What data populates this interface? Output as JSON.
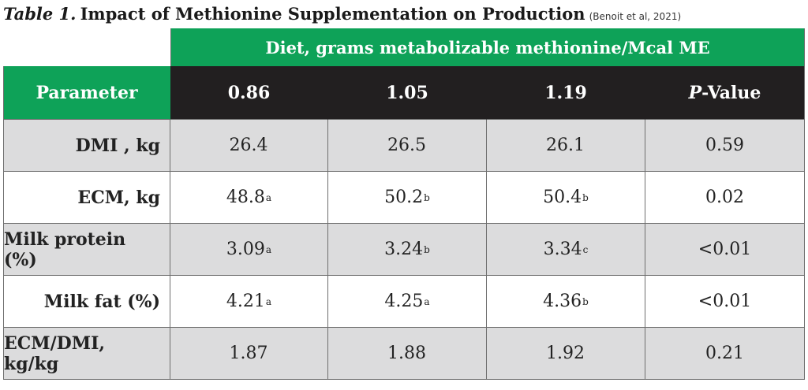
{
  "title": {
    "label": "Table 1.",
    "main": "Impact of Methionine Supplementation on Production",
    "citation": "(Benoit et al, 2021)"
  },
  "banner": "Diet, grams metabolizable methionine/Mcal ME",
  "header": {
    "parameter": "Parameter",
    "diets": [
      "0.86",
      "1.05",
      "1.19"
    ],
    "pvalue_prefix": "P",
    "pvalue_suffix": "-Value"
  },
  "rows": [
    {
      "label": "DMI , kg",
      "v": [
        "26.4",
        "26.5",
        "26.1"
      ],
      "s": [
        "",
        "",
        ""
      ],
      "p": "0.59"
    },
    {
      "label": "ECM, kg",
      "v": [
        "48.8",
        "50.2",
        "50.4"
      ],
      "s": [
        "a",
        "b",
        "b"
      ],
      "p": "0.02"
    },
    {
      "label": "Milk protein (%)",
      "v": [
        "3.09",
        "3.24",
        "3.34"
      ],
      "s": [
        "a",
        "b",
        "c"
      ],
      "p": "<0.01"
    },
    {
      "label": "Milk fat (%)",
      "v": [
        "4.21",
        "4.25",
        "4.36"
      ],
      "s": [
        "a",
        "a",
        "b"
      ],
      "p": "<0.01"
    },
    {
      "label": "ECM/DMI, kg/kg",
      "v": [
        "1.87",
        "1.88",
        "1.92"
      ],
      "s": [
        "",
        "",
        ""
      ],
      "p": "0.21"
    }
  ],
  "colors": {
    "green": "#0ea258",
    "black": "#221f20",
    "grey_row": "#dcdcdd",
    "white_row": "#ffffff",
    "border": "#6e6e6e"
  }
}
